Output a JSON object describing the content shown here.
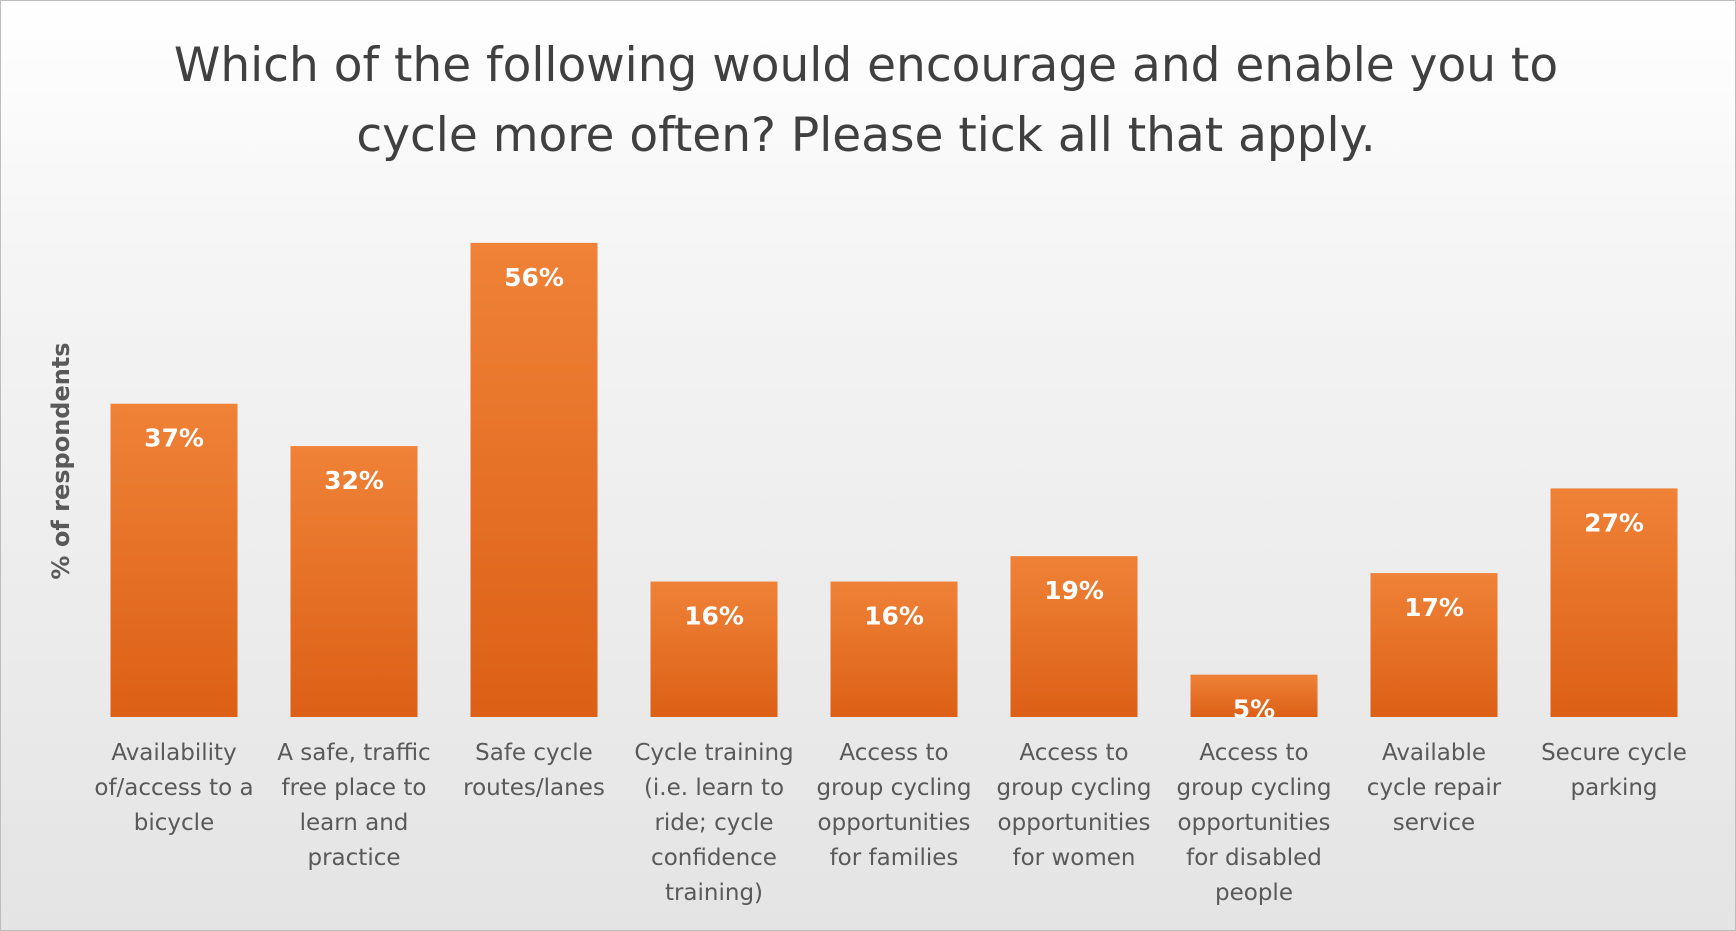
{
  "chart_data": {
    "type": "bar",
    "title": "Which of the following would encourage and enable you to cycle more often? Please tick all that apply.",
    "y_label": "% of respondents",
    "categories": [
      "Availability of/access to a bicycle",
      "A safe, traffic free place to learn and practice",
      "Safe cycle routes/lanes",
      "Cycle training (i.e. learn to ride; cycle confidence training)",
      "Access to group cycling opportunities for families",
      "Access to group cycling opportunities for women",
      "Access to group cycling opportunities for disabled people",
      "Available cycle repair service",
      "Secure cycle parking"
    ],
    "values": [
      37,
      32,
      56,
      16,
      16,
      19,
      5,
      17,
      27
    ],
    "value_labels": [
      "37%",
      "32%",
      "56%",
      "16%",
      "16%",
      "19%",
      "5%",
      "17%",
      "27%"
    ],
    "color": "#e96d25",
    "ylim": [
      0,
      60
    ]
  }
}
